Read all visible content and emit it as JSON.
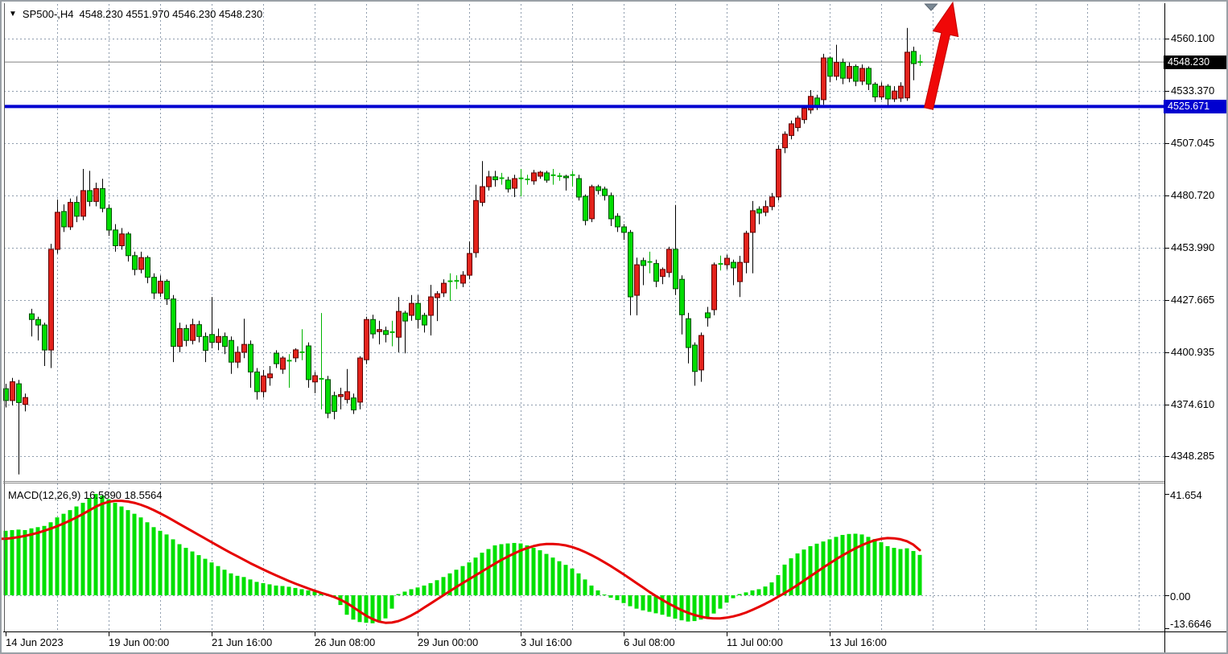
{
  "header": {
    "symbol_marker_icon": "▼",
    "title": "SP500-,H4",
    "ohlc": "4548.230 4551.970 4546.230 4548.230"
  },
  "macd_label": "MACD(12,26,9) 16.5890 18.5564",
  "price_axis": {
    "labels": [
      "4560.100",
      "4533.370",
      "4507.045",
      "4480.720",
      "4453.990",
      "4427.665",
      "4400.935",
      "4374.610",
      "4348.285"
    ],
    "current_price": {
      "text": "4548.230",
      "bg": "#000000",
      "fg": "#ffffff"
    },
    "hline_label": {
      "text": "4525.671",
      "bg": "#0000d0",
      "fg": "#ffffff"
    }
  },
  "macd_axis": {
    "max_label": "41.654",
    "zero_label": "0.00",
    "min_label": "-13.6646"
  },
  "time_axis": {
    "labels": [
      {
        "index": 0,
        "text": "14 Jun 2023"
      },
      {
        "index": 16,
        "text": "19 Jun 00:00"
      },
      {
        "index": 32,
        "text": "21 Jun 16:00"
      },
      {
        "index": 48,
        "text": "26 Jun 08:00"
      },
      {
        "index": 64,
        "text": "29 Jun 00:00"
      },
      {
        "index": 80,
        "text": "3 Jul 16:00"
      },
      {
        "index": 96,
        "text": "6 Jul 08:00"
      },
      {
        "index": 112,
        "text": "11 Jul 00:00"
      },
      {
        "index": 128,
        "text": "13 Jul 16:00"
      }
    ]
  },
  "colors": {
    "bull_candle": "#e3231c",
    "bull_border": "#5a0000",
    "bear_candle": "#00dc00",
    "bear_border": "#004d00",
    "wick": "#000000",
    "doji": "#00b400",
    "grid": "#8d9bac",
    "frame": "#5a5a5a",
    "current_price_line": "#808080",
    "hline": "#0000d0",
    "macd_bar": "#00e000",
    "macd_signal": "#e60000",
    "arrow": "#f00808",
    "shift_marker": "#7a8894"
  },
  "chart_data": {
    "type": "candlestick+macd",
    "symbol": "SP500-",
    "timeframe": "H4",
    "current_bar": {
      "open": 4548.23,
      "high": 4551.97,
      "low": 4546.23,
      "close": 4548.23
    },
    "price_ticks": [
      4560.1,
      4533.37,
      4507.045,
      4480.72,
      4453.99,
      4427.665,
      4400.935,
      4374.61,
      4348.285
    ],
    "current_price": 4548.23,
    "horizontal_line": 4525.671,
    "grid": true,
    "candles": [
      [
        4382.5,
        4385,
        4373,
        4376.5
      ],
      [
        4376.5,
        4388,
        4374,
        4386
      ],
      [
        4385,
        4387,
        4339,
        4375.5
      ],
      [
        4374.5,
        4380,
        4371,
        4378
      ],
      [
        4420.5,
        4423,
        4409,
        4417.6
      ],
      [
        4417.6,
        4419,
        4407,
        4414.8
      ],
      [
        4414.8,
        4416,
        4394,
        4402.1
      ],
      [
        4402.1,
        4456,
        4393,
        4453.2
      ],
      [
        4453.2,
        4478.5,
        4451,
        4472
      ],
      [
        4472.4,
        4476,
        4462,
        4464.6
      ],
      [
        4464.6,
        4479,
        4463,
        4477
      ],
      [
        4477,
        4480,
        4467,
        4470
      ],
      [
        4470,
        4494,
        4468,
        4483
      ],
      [
        4483,
        4493,
        4475,
        4477.5
      ],
      [
        4477.5,
        4487,
        4475,
        4484
      ],
      [
        4484,
        4489,
        4472,
        4474
      ],
      [
        4474,
        4476,
        4460,
        4463
      ],
      [
        4463,
        4466,
        4452,
        4455
      ],
      [
        4455,
        4464,
        4453,
        4461
      ],
      [
        4461,
        4462,
        4447,
        4450
      ],
      [
        4450,
        4452,
        4440,
        4443
      ],
      [
        4443,
        4452,
        4441,
        4449
      ],
      [
        4449,
        4450,
        4436,
        4439
      ],
      [
        4439,
        4441,
        4428,
        4431
      ],
      [
        4431,
        4440,
        4429,
        4437
      ],
      [
        4437,
        4438,
        4425,
        4428
      ],
      [
        4428,
        4430,
        4396,
        4404
      ],
      [
        4404,
        4416,
        4401,
        4413
      ],
      [
        4413,
        4415,
        4404,
        4407
      ],
      [
        4407,
        4418,
        4405,
        4415
      ],
      [
        4415,
        4417,
        4406,
        4409
      ],
      [
        4409,
        4411,
        4396,
        4402
      ],
      [
        4410,
        4429,
        4403,
        4406
      ],
      [
        4406,
        4413,
        4402,
        4409
      ],
      [
        4409,
        4411,
        4400,
        4404
      ],
      [
        4407,
        4409,
        4390,
        4396
      ],
      [
        4396,
        4404,
        4393,
        4401
      ],
      [
        4401,
        4418,
        4398,
        4405
      ],
      [
        4405,
        4407,
        4383,
        4391
      ],
      [
        4391,
        4393,
        4377,
        4381
      ],
      [
        4381,
        4392,
        4378,
        4389
      ],
      [
        4388,
        4394,
        4384,
        4390
      ],
      [
        4400.5,
        4402,
        4393,
        4395.2
      ],
      [
        4392.4,
        4399,
        4390,
        4398.1
      ],
      [
        4396.3,
        4400,
        4383,
        4396.7
      ],
      [
        4398.1,
        4403,
        4396,
        4402.2
      ],
      [
        4401.5,
        4412.7,
        4397,
        4401
      ],
      [
        4404.2,
        4406,
        4383,
        4387.1
      ],
      [
        4385.9,
        4391,
        4380.2,
        4389.1
      ],
      [
        4387,
        4420.9,
        4372,
        4387.5
      ],
      [
        4387.1,
        4389,
        4367.5,
        4370
      ],
      [
        4379,
        4381,
        4367,
        4371
      ],
      [
        4378.5,
        4383,
        4372,
        4379.5
      ],
      [
        4377,
        4392.5,
        4375,
        4381
      ],
      [
        4377.8,
        4380,
        4369.7,
        4371.7
      ],
      [
        4375.7,
        4399,
        4372,
        4398.1
      ],
      [
        4397.2,
        4419,
        4395,
        4417.6
      ],
      [
        4417.6,
        4420,
        4408,
        4410.3
      ],
      [
        4411.5,
        4417,
        4405,
        4412.5
      ],
      [
        4412,
        4414,
        4406,
        4410
      ],
      [
        4411,
        4417,
        4404,
        4411.2
      ],
      [
        4408.6,
        4429,
        4401,
        4421.7
      ],
      [
        4420.9,
        4422,
        4400.4,
        4416.8
      ],
      [
        4419.7,
        4430,
        4417,
        4425.8
      ],
      [
        4425.8,
        4430,
        4413,
        4417.6
      ],
      [
        4419.7,
        4421,
        4411,
        4414.8
      ],
      [
        4419.7,
        4435.2,
        4409.5,
        4429.1
      ],
      [
        4428.7,
        4432,
        4416.8,
        4430.7
      ],
      [
        4431.1,
        4438,
        4429,
        4436
      ],
      [
        4436.5,
        4441,
        4427,
        4437
      ],
      [
        4437,
        4440,
        4433,
        4437.2
      ],
      [
        4436,
        4442.1,
        4434,
        4440.1
      ],
      [
        4440.1,
        4457.2,
        4438,
        4451.1
      ],
      [
        4451.5,
        4486,
        4449,
        4478
      ],
      [
        4477,
        4498,
        4475,
        4485
      ],
      [
        4485,
        4493,
        4483,
        4490
      ],
      [
        4490,
        4493,
        4485,
        4488.5
      ],
      [
        4489,
        4492,
        4486,
        4489.3
      ],
      [
        4488.3,
        4490,
        4482,
        4483.8
      ],
      [
        4484.2,
        4491,
        4479.7,
        4489.1
      ],
      [
        4489,
        4494,
        4480,
        4489.2
      ],
      [
        4489,
        4491,
        4486,
        4488.7
      ],
      [
        4487.9,
        4493.5,
        4486,
        4492
      ],
      [
        4490.3,
        4493,
        4489,
        4492.3
      ],
      [
        4492,
        4493,
        4487,
        4488.3
      ],
      [
        4491,
        4494,
        4486,
        4490.8
      ],
      [
        4490.5,
        4492,
        4488,
        4490.3
      ],
      [
        4490.3,
        4491,
        4483,
        4489.5
      ],
      [
        4490.6,
        4493,
        4485,
        4490.9
      ],
      [
        4489.1,
        4491,
        4478,
        4479.7
      ],
      [
        4480.1,
        4481,
        4465.4,
        4467.8
      ],
      [
        4468.7,
        4486,
        4467,
        4485
      ],
      [
        4485,
        4486,
        4481,
        4483
      ],
      [
        4483.8,
        4485,
        4478,
        4480.5
      ],
      [
        4480.5,
        4482,
        4465,
        4468.7
      ],
      [
        4470,
        4471.5,
        4462,
        4464.6
      ],
      [
        4464.6,
        4466,
        4458,
        4461.8
      ],
      [
        4461.8,
        4463,
        4419.7,
        4429.1
      ],
      [
        4429.9,
        4449,
        4419.7,
        4445.4
      ],
      [
        4447.5,
        4449,
        4435,
        4445
      ],
      [
        4446.2,
        4452,
        4441,
        4446.8
      ],
      [
        4446,
        4448,
        4434,
        4437
      ],
      [
        4439.4,
        4444,
        4435.5,
        4443
      ],
      [
        4441.4,
        4454.5,
        4439,
        4453.2
      ],
      [
        4453.2,
        4475.7,
        4430,
        4433.2
      ],
      [
        4438,
        4440,
        4410,
        4420
      ],
      [
        4418,
        4421,
        4395.3,
        4403.4
      ],
      [
        4404.6,
        4406,
        4384,
        4391.2
      ],
      [
        4392,
        4411,
        4386,
        4409.5
      ],
      [
        4421,
        4424,
        4414,
        4418.5
      ],
      [
        4422.6,
        4446.5,
        4419.7,
        4445.4
      ],
      [
        4446,
        4450,
        4442.5,
        4445.8
      ],
      [
        4445.4,
        4450.5,
        4443,
        4448.7
      ],
      [
        4446.6,
        4448,
        4435,
        4443.8
      ],
      [
        4436.8,
        4449.9,
        4429,
        4446.6
      ],
      [
        4446.6,
        4462.6,
        4441,
        4461.4
      ],
      [
        4461.8,
        4477.7,
        4441,
        4472.8
      ],
      [
        4473.6,
        4475,
        4465.9,
        4471.6
      ],
      [
        4472,
        4478,
        4470,
        4474.9
      ],
      [
        4474.9,
        4481.8,
        4473,
        4479.8
      ],
      [
        4479.8,
        4506,
        4478,
        4504
      ],
      [
        4504.7,
        4513,
        4502,
        4511.6
      ],
      [
        4511,
        4518.5,
        4509,
        4516.9
      ],
      [
        4515,
        4521,
        4513,
        4519.8
      ],
      [
        4519,
        4526,
        4517,
        4524.7
      ],
      [
        4523.9,
        4534,
        4522,
        4530.8
      ],
      [
        4530,
        4531.6,
        4523.9,
        4525.9
      ],
      [
        4529.1,
        4552.4,
        4526.5,
        4550.3
      ],
      [
        4550.3,
        4551,
        4538,
        4541
      ],
      [
        4541,
        4557,
        4539,
        4548
      ],
      [
        4548,
        4550,
        4537,
        4540
      ],
      [
        4540,
        4548,
        4538,
        4546
      ],
      [
        4546,
        4547,
        4536,
        4538.5
      ],
      [
        4538.5,
        4547,
        4536.5,
        4545
      ],
      [
        4545,
        4546,
        4534,
        4537
      ],
      [
        4537,
        4538,
        4528,
        4530.5
      ],
      [
        4530.5,
        4538,
        4529,
        4536
      ],
      [
        4536,
        4537,
        4526,
        4529.5
      ],
      [
        4529.5,
        4536,
        4528,
        4533.5
      ],
      [
        4529.9,
        4538,
        4528,
        4536
      ],
      [
        4530,
        4565.5,
        4528.5,
        4553.2
      ],
      [
        4553.6,
        4556,
        4539,
        4547.4
      ],
      [
        4548.23,
        4551.97,
        4546.23,
        4548.23
      ]
    ],
    "macd": {
      "params": [
        12,
        26,
        9
      ],
      "macd_value": 16.589,
      "signal_value": 18.5564,
      "axis_max": 41.654,
      "axis_min": -13.6646,
      "histogram": [
        26.5,
        26.8,
        27,
        26.8,
        27.5,
        28,
        28.5,
        30,
        32,
        33.5,
        35,
        36.5,
        38,
        40,
        41.654,
        41,
        39.5,
        38,
        36.5,
        35,
        33.5,
        32,
        30,
        28,
        26.5,
        25,
        23,
        21,
        19.5,
        18,
        16.5,
        15,
        13.5,
        12,
        10.5,
        9,
        8,
        7.5,
        6.5,
        5.5,
        5,
        4.5,
        4,
        3.8,
        3.5,
        3,
        2.5,
        2,
        1.5,
        0.8,
        0.3,
        -1,
        -4,
        -8,
        -10,
        -11,
        -11.3,
        -11.5,
        -11,
        -9.5,
        -5.5,
        0.5,
        1.5,
        2.5,
        3.2,
        4,
        5,
        6.2,
        7.5,
        9,
        10.5,
        12,
        13.5,
        15.5,
        17.5,
        19,
        20.5,
        21,
        21.3,
        21.5,
        21.3,
        20.5,
        19.5,
        18.5,
        17,
        15.5,
        14,
        12.5,
        11,
        9,
        6.5,
        4,
        2,
        0.3,
        -1,
        -2,
        -3.2,
        -4.5,
        -5.5,
        -6.2,
        -6.8,
        -7.4,
        -8,
        -8.8,
        -9.6,
        -10.3,
        -10.8,
        -10.6,
        -10,
        -9,
        -7.5,
        -5.5,
        -3,
        -1.2,
        0.5,
        1.2,
        2,
        2.5,
        3.6,
        5.3,
        8.3,
        12.6,
        15.2,
        17.2,
        18.8,
        20.2,
        21.2,
        22.1,
        23,
        24,
        24.8,
        25.2,
        25.3,
        25,
        24,
        23.1,
        21.8,
        20.2,
        19.5,
        19,
        19.3,
        18.2,
        16.589
      ],
      "signal": [
        23.2,
        23.5,
        23.9,
        24.4,
        25,
        25.7,
        26.5,
        27.4,
        28.4,
        29.5,
        30.7,
        32,
        33.4,
        34.9,
        36.4,
        37.6,
        38.4,
        38.8,
        38.8,
        38.5,
        38,
        37.2,
        36.2,
        35,
        33.7,
        32.3,
        30.8,
        29.3,
        27.8,
        26.3,
        24.8,
        23.3,
        21.8,
        20.3,
        18.8,
        17.4,
        16,
        14.6,
        13.2,
        11.9,
        10.6,
        9.4,
        8.2,
        7,
        5.9,
        4.8,
        3.8,
        2.8,
        1.9,
        1,
        0.2,
        -0.7,
        -1.8,
        -3.2,
        -4.9,
        -6.7,
        -8.4,
        -9.8,
        -10.8,
        -11.3,
        -11.2,
        -10.6,
        -9.6,
        -8.3,
        -6.8,
        -5.1,
        -3.4,
        -1.7,
        0,
        1.7,
        3.4,
        5,
        6.6,
        8.2,
        9.8,
        11.4,
        13,
        14.5,
        15.9,
        17.2,
        18.4,
        19.4,
        20.2,
        20.8,
        21.1,
        21.1,
        20.9,
        20.5,
        19.8,
        18.9,
        17.8,
        16.5,
        15.1,
        13.6,
        12,
        10.3,
        8.6,
        6.8,
        5,
        3.2,
        1.4,
        -0.3,
        -1.9,
        -3.4,
        -4.8,
        -6.1,
        -7.2,
        -8.1,
        -8.8,
        -9.3,
        -9.5,
        -9.5,
        -9.2,
        -8.7,
        -8,
        -7.1,
        -6,
        -4.8,
        -3.5,
        -2.1,
        -0.6,
        0.9,
        2.5,
        4.2,
        6,
        7.8,
        9.6,
        11.4,
        13.1,
        14.8,
        16.4,
        17.9,
        19.3,
        20.6,
        21.7,
        22.6,
        23.2,
        23.5,
        23.4,
        23,
        22.2,
        20.8,
        18.5564
      ]
    },
    "annotations": {
      "up_arrow": true,
      "shift_triangle": true
    }
  }
}
